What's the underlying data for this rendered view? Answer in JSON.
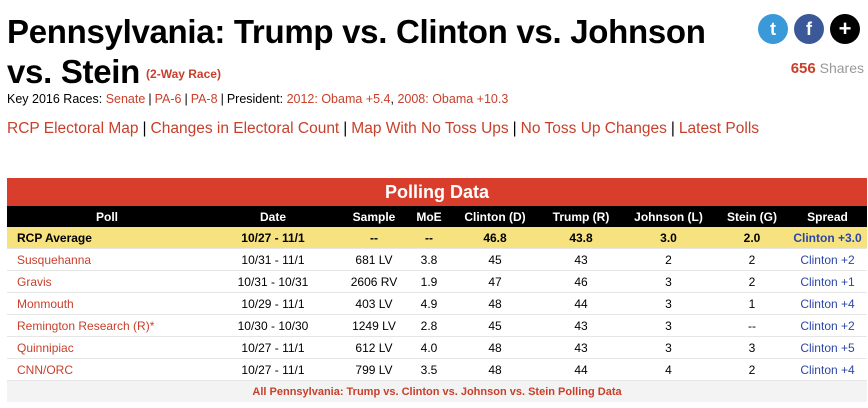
{
  "page": {
    "title_line1": "Pennsylvania: Trump vs. Clinton vs. Johnson",
    "title_line2": "vs. Stein",
    "race_badge": "(2-Way Race)"
  },
  "share": {
    "count": "656",
    "label": "Shares",
    "buttons": [
      {
        "name": "twitter-icon",
        "glyph": "t"
      },
      {
        "name": "facebook-icon",
        "glyph": "f"
      },
      {
        "name": "plus-icon",
        "glyph": "+"
      }
    ]
  },
  "key_races": {
    "label": "Key 2016 Races:",
    "senate": "Senate",
    "pa6": "PA-6",
    "pa8": "PA-8",
    "president_label": "President:",
    "y2012": "2012: Obama +5.4",
    "y2008": "2008: Obama +10.3"
  },
  "nav_links": [
    "RCP Electoral Map",
    "Changes in Electoral Count",
    "Map With No Toss Ups",
    "No Toss Up Changes",
    "Latest Polls"
  ],
  "polling": {
    "header": "Polling Data",
    "columns": [
      "Poll",
      "Date",
      "Sample",
      "MoE",
      "Clinton (D)",
      "Trump (R)",
      "Johnson (L)",
      "Stein (G)",
      "Spread"
    ],
    "average": [
      "RCP Average",
      "10/27 - 11/1",
      "--",
      "--",
      "46.8",
      "43.8",
      "3.0",
      "2.0",
      "Clinton +3.0"
    ],
    "rows": [
      [
        "Susquehanna",
        "10/31 - 11/1",
        "681 LV",
        "3.8",
        "45",
        "43",
        "2",
        "2",
        "Clinton +2"
      ],
      [
        "Gravis",
        "10/31 - 10/31",
        "2606 RV",
        "1.9",
        "47",
        "46",
        "3",
        "2",
        "Clinton +1"
      ],
      [
        "Monmouth",
        "10/29 - 11/1",
        "403 LV",
        "4.9",
        "48",
        "44",
        "3",
        "1",
        "Clinton +4"
      ],
      [
        "Remington Research (R)*",
        "10/30 - 10/30",
        "1249 LV",
        "2.8",
        "45",
        "43",
        "3",
        "--",
        "Clinton +2"
      ],
      [
        "Quinnipiac",
        "10/27 - 11/1",
        "612 LV",
        "4.0",
        "48",
        "43",
        "3",
        "3",
        "Clinton +5"
      ],
      [
        "CNN/ORC",
        "10/27 - 11/1",
        "799 LV",
        "3.5",
        "48",
        "44",
        "4",
        "2",
        "Clinton +4"
      ]
    ],
    "footer": "All Pennsylvania: Trump vs. Clinton vs. Johnson vs. Stein Polling Data"
  }
}
